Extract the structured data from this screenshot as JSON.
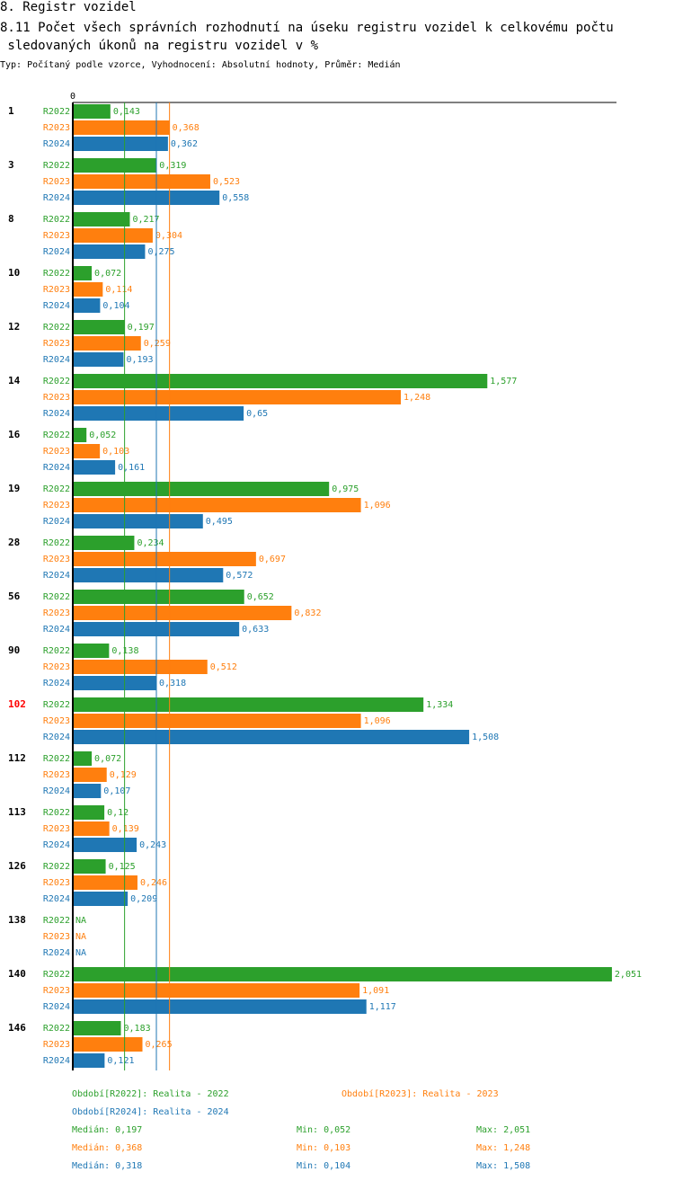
{
  "header": {
    "section_title": "8. Registr vozidel",
    "chart_title": "8.11 Počet všech správních rozhodnutí na úseku registru vozidel k celkovému počtu\n sledovaných úkonů na registru vozidel v %",
    "subtitle": "Typ: Počítaný podle vzorce, Vyhodnocení: Absolutní hodnoty, Průměr: Medián"
  },
  "colors": {
    "R2022": "#2ca02c",
    "R2023": "#ff7f0e",
    "R2024": "#1f77b4",
    "highlight": "#ff0000",
    "text": "#000000"
  },
  "chart_data": {
    "type": "bar",
    "orientation": "horizontal",
    "title": "8.11 Počet všech správních rozhodnutí na úseku registru vozidel k celkovému počtu sledovaných úkonů na registru vozidel v %",
    "axis_zero_label": "0",
    "xlim": [
      0,
      2.1
    ],
    "categories": [
      "1",
      "3",
      "8",
      "10",
      "12",
      "14",
      "16",
      "19",
      "28",
      "56",
      "90",
      "102",
      "112",
      "113",
      "126",
      "138",
      "140",
      "146"
    ],
    "highlight_category": "102",
    "series": [
      {
        "name": "R2022",
        "values": [
          0.143,
          0.319,
          0.217,
          0.072,
          0.197,
          1.577,
          0.052,
          0.975,
          0.234,
          0.652,
          0.138,
          1.334,
          0.072,
          0.12,
          0.125,
          null,
          2.051,
          0.183
        ],
        "labels": [
          "0,143",
          "0,319",
          "0,217",
          "0,072",
          "0,197",
          "1,577",
          "0,052",
          "0,975",
          "0,234",
          "0,652",
          "0,138",
          "1,334",
          "0,072",
          "0,12",
          "0,125",
          "NA",
          "2,051",
          "0,183"
        ]
      },
      {
        "name": "R2023",
        "values": [
          0.368,
          0.523,
          0.304,
          0.114,
          0.259,
          1.248,
          0.103,
          1.096,
          0.697,
          0.832,
          0.512,
          1.096,
          0.129,
          0.139,
          0.246,
          null,
          1.091,
          0.265
        ],
        "labels": [
          "0,368",
          "0,523",
          "0,304",
          "0,114",
          "0,259",
          "1,248",
          "0,103",
          "1,096",
          "0,697",
          "0,832",
          "0,512",
          "1,096",
          "0,129",
          "0,139",
          "0,246",
          "NA",
          "1,091",
          "0,265"
        ]
      },
      {
        "name": "R2024",
        "values": [
          0.362,
          0.558,
          0.275,
          0.104,
          0.193,
          0.65,
          0.161,
          0.495,
          0.572,
          0.633,
          0.318,
          1.508,
          0.107,
          0.243,
          0.209,
          null,
          1.117,
          0.121
        ],
        "labels": [
          "0,362",
          "0,558",
          "0,275",
          "0,104",
          "0,193",
          "0,65",
          "0,161",
          "0,495",
          "0,572",
          "0,633",
          "0,318",
          "1,508",
          "0,107",
          "0,243",
          "0,209",
          "NA",
          "1,117",
          "0,121"
        ]
      }
    ],
    "median_lines": {
      "R2022": 0.197,
      "R2023": 0.368,
      "R2024": 0.318
    },
    "legend": [
      {
        "series": "R2022",
        "text": "Období[R2022]: Realita - 2022"
      },
      {
        "series": "R2023",
        "text": "Období[R2023]: Realita - 2023"
      },
      {
        "series": "R2024",
        "text": "Období[R2024]: Realita - 2024"
      }
    ],
    "stats": [
      {
        "series": "R2022",
        "median": "Medián: 0,197",
        "min": "Min: 0,052",
        "max": "Max: 2,051"
      },
      {
        "series": "R2023",
        "median": "Medián: 0,368",
        "min": "Min: 0,103",
        "max": "Max: 1,248"
      },
      {
        "series": "R2024",
        "median": "Medián: 0,318",
        "min": "Min: 0,104",
        "max": "Max: 1,508"
      }
    ]
  }
}
